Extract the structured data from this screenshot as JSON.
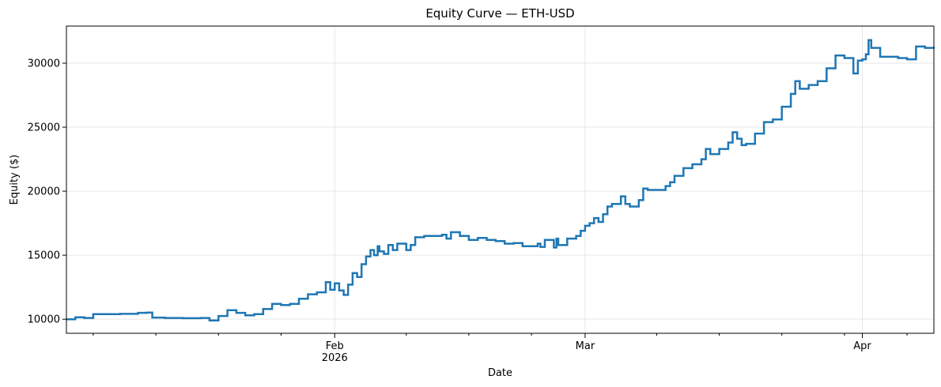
{
  "chart_data": {
    "type": "line",
    "title": "Equity Curve — ETH-USD",
    "xlabel": "Date",
    "ylabel": "Equity ($)",
    "xlim": [
      "2026-01-02",
      "2026-04-09"
    ],
    "ylim": [
      8900,
      32900
    ],
    "grid": true,
    "legend": "none",
    "line_color": "#1f77b4",
    "grid_color": "#e6e6e6",
    "y_ticks": [
      10000,
      15000,
      20000,
      25000,
      30000
    ],
    "y_tick_labels": [
      "10000",
      "15000",
      "20000",
      "25000",
      "30000"
    ],
    "x_major_ticks": [
      {
        "date": "2026-02-01",
        "label": "Feb",
        "sublabel": "2026"
      },
      {
        "date": "2026-03-01",
        "label": "Mar",
        "sublabel": ""
      },
      {
        "date": "2026-04-01",
        "label": "Apr",
        "sublabel": ""
      }
    ],
    "x_minor_ticks": [
      "2026-01-05",
      "2026-01-12",
      "2026-01-19",
      "2026-01-26",
      "2026-02-09",
      "2026-02-16",
      "2026-02-23",
      "2026-03-09",
      "2026-03-16",
      "2026-03-23",
      "2026-03-30",
      "2026-04-06"
    ],
    "series": [
      {
        "step": true,
        "points": [
          [
            "2026-01-02",
            10000
          ],
          [
            "2026-01-03",
            10150
          ],
          [
            "2026-01-04",
            10100
          ],
          [
            "2026-01-05",
            10400
          ],
          [
            "2026-01-08",
            10420
          ],
          [
            "2026-01-10",
            10500
          ],
          [
            "2026-01-11",
            10520
          ],
          [
            "2026-01-11.6",
            10130
          ],
          [
            "2026-01-13",
            10100
          ],
          [
            "2026-01-15",
            10080
          ],
          [
            "2026-01-17",
            10100
          ],
          [
            "2026-01-18",
            9900
          ],
          [
            "2026-01-19",
            10250
          ],
          [
            "2026-01-20",
            10700
          ],
          [
            "2026-01-21",
            10500
          ],
          [
            "2026-01-22",
            10300
          ],
          [
            "2026-01-23",
            10400
          ],
          [
            "2026-01-24",
            10800
          ],
          [
            "2026-01-25",
            11200
          ],
          [
            "2026-01-26",
            11100
          ],
          [
            "2026-01-27",
            11200
          ],
          [
            "2026-01-28",
            11600
          ],
          [
            "2026-01-29",
            11950
          ],
          [
            "2026-01-30",
            12100
          ],
          [
            "2026-01-31",
            12900
          ],
          [
            "2026-01-31.5",
            12300
          ],
          [
            "2026-02-01",
            12800
          ],
          [
            "2026-02-01.5",
            12250
          ],
          [
            "2026-02-02",
            11900
          ],
          [
            "2026-02-02.5",
            12700
          ],
          [
            "2026-02-03",
            13600
          ],
          [
            "2026-02-03.5",
            13300
          ],
          [
            "2026-02-04",
            14300
          ],
          [
            "2026-02-04.5",
            14900
          ],
          [
            "2026-02-05",
            15400
          ],
          [
            "2026-02-05.4",
            15000
          ],
          [
            "2026-02-05.8",
            15700
          ],
          [
            "2026-02-06",
            15300
          ],
          [
            "2026-02-06.5",
            15100
          ],
          [
            "2026-02-07",
            15800
          ],
          [
            "2026-02-07.5",
            15400
          ],
          [
            "2026-02-08",
            15900
          ],
          [
            "2026-02-09",
            15400
          ],
          [
            "2026-02-09.5",
            15800
          ],
          [
            "2026-02-10",
            16400
          ],
          [
            "2026-02-11",
            16500
          ],
          [
            "2026-02-12",
            16500
          ],
          [
            "2026-02-13",
            16600
          ],
          [
            "2026-02-13.5",
            16300
          ],
          [
            "2026-02-14",
            16800
          ],
          [
            "2026-02-15",
            16500
          ],
          [
            "2026-02-16",
            16200
          ],
          [
            "2026-02-17",
            16350
          ],
          [
            "2026-02-18",
            16200
          ],
          [
            "2026-02-19",
            16100
          ],
          [
            "2026-02-20",
            15900
          ],
          [
            "2026-02-21",
            15950
          ],
          [
            "2026-02-22",
            15700
          ],
          [
            "2026-02-23",
            15700
          ],
          [
            "2026-02-23.7",
            15900
          ],
          [
            "2026-02-24",
            15650
          ],
          [
            "2026-02-24.5",
            16200
          ],
          [
            "2026-02-25.5",
            15600
          ],
          [
            "2026-02-25.8",
            16300
          ],
          [
            "2026-02-26",
            15800
          ],
          [
            "2026-02-27",
            16300
          ],
          [
            "2026-02-28",
            16500
          ],
          [
            "2026-02-28.5",
            16900
          ],
          [
            "2026-03-01",
            17300
          ],
          [
            "2026-03-01.5",
            17500
          ],
          [
            "2026-03-02",
            17900
          ],
          [
            "2026-03-02.5",
            17600
          ],
          [
            "2026-03-03",
            18200
          ],
          [
            "2026-03-03.5",
            18800
          ],
          [
            "2026-03-04",
            19000
          ],
          [
            "2026-03-05",
            19600
          ],
          [
            "2026-03-05.5",
            19000
          ],
          [
            "2026-03-06",
            18800
          ],
          [
            "2026-03-07",
            19300
          ],
          [
            "2026-03-07.5",
            20200
          ],
          [
            "2026-03-08",
            20100
          ],
          [
            "2026-03-09",
            20100
          ],
          [
            "2026-03-10",
            20400
          ],
          [
            "2026-03-10.5",
            20700
          ],
          [
            "2026-03-11",
            21200
          ],
          [
            "2026-03-12",
            21800
          ],
          [
            "2026-03-13",
            22100
          ],
          [
            "2026-03-14",
            22500
          ],
          [
            "2026-03-14.5",
            23300
          ],
          [
            "2026-03-15",
            22900
          ],
          [
            "2026-03-16",
            23300
          ],
          [
            "2026-03-17",
            23800
          ],
          [
            "2026-03-17.5",
            24600
          ],
          [
            "2026-03-18",
            24100
          ],
          [
            "2026-03-18.5",
            23600
          ],
          [
            "2026-03-19",
            23700
          ],
          [
            "2026-03-20",
            24500
          ],
          [
            "2026-03-21",
            25400
          ],
          [
            "2026-03-22",
            25600
          ],
          [
            "2026-03-23",
            26600
          ],
          [
            "2026-03-24",
            27600
          ],
          [
            "2026-03-24.5",
            28600
          ],
          [
            "2026-03-25",
            28000
          ],
          [
            "2026-03-26",
            28300
          ],
          [
            "2026-03-27",
            28600
          ],
          [
            "2026-03-28",
            29600
          ],
          [
            "2026-03-29",
            30600
          ],
          [
            "2026-03-30",
            30400
          ],
          [
            "2026-03-31",
            29200
          ],
          [
            "2026-03-31.5",
            30200
          ],
          [
            "2026-04-01",
            30300
          ],
          [
            "2026-04-01.4",
            30700
          ],
          [
            "2026-04-01.7",
            31800
          ],
          [
            "2026-04-02",
            31200
          ],
          [
            "2026-04-03",
            30500
          ],
          [
            "2026-04-05",
            30400
          ],
          [
            "2026-04-06",
            30300
          ],
          [
            "2026-04-07",
            31300
          ],
          [
            "2026-04-08",
            31200
          ],
          [
            "2026-04-09",
            31150
          ]
        ]
      }
    ]
  }
}
